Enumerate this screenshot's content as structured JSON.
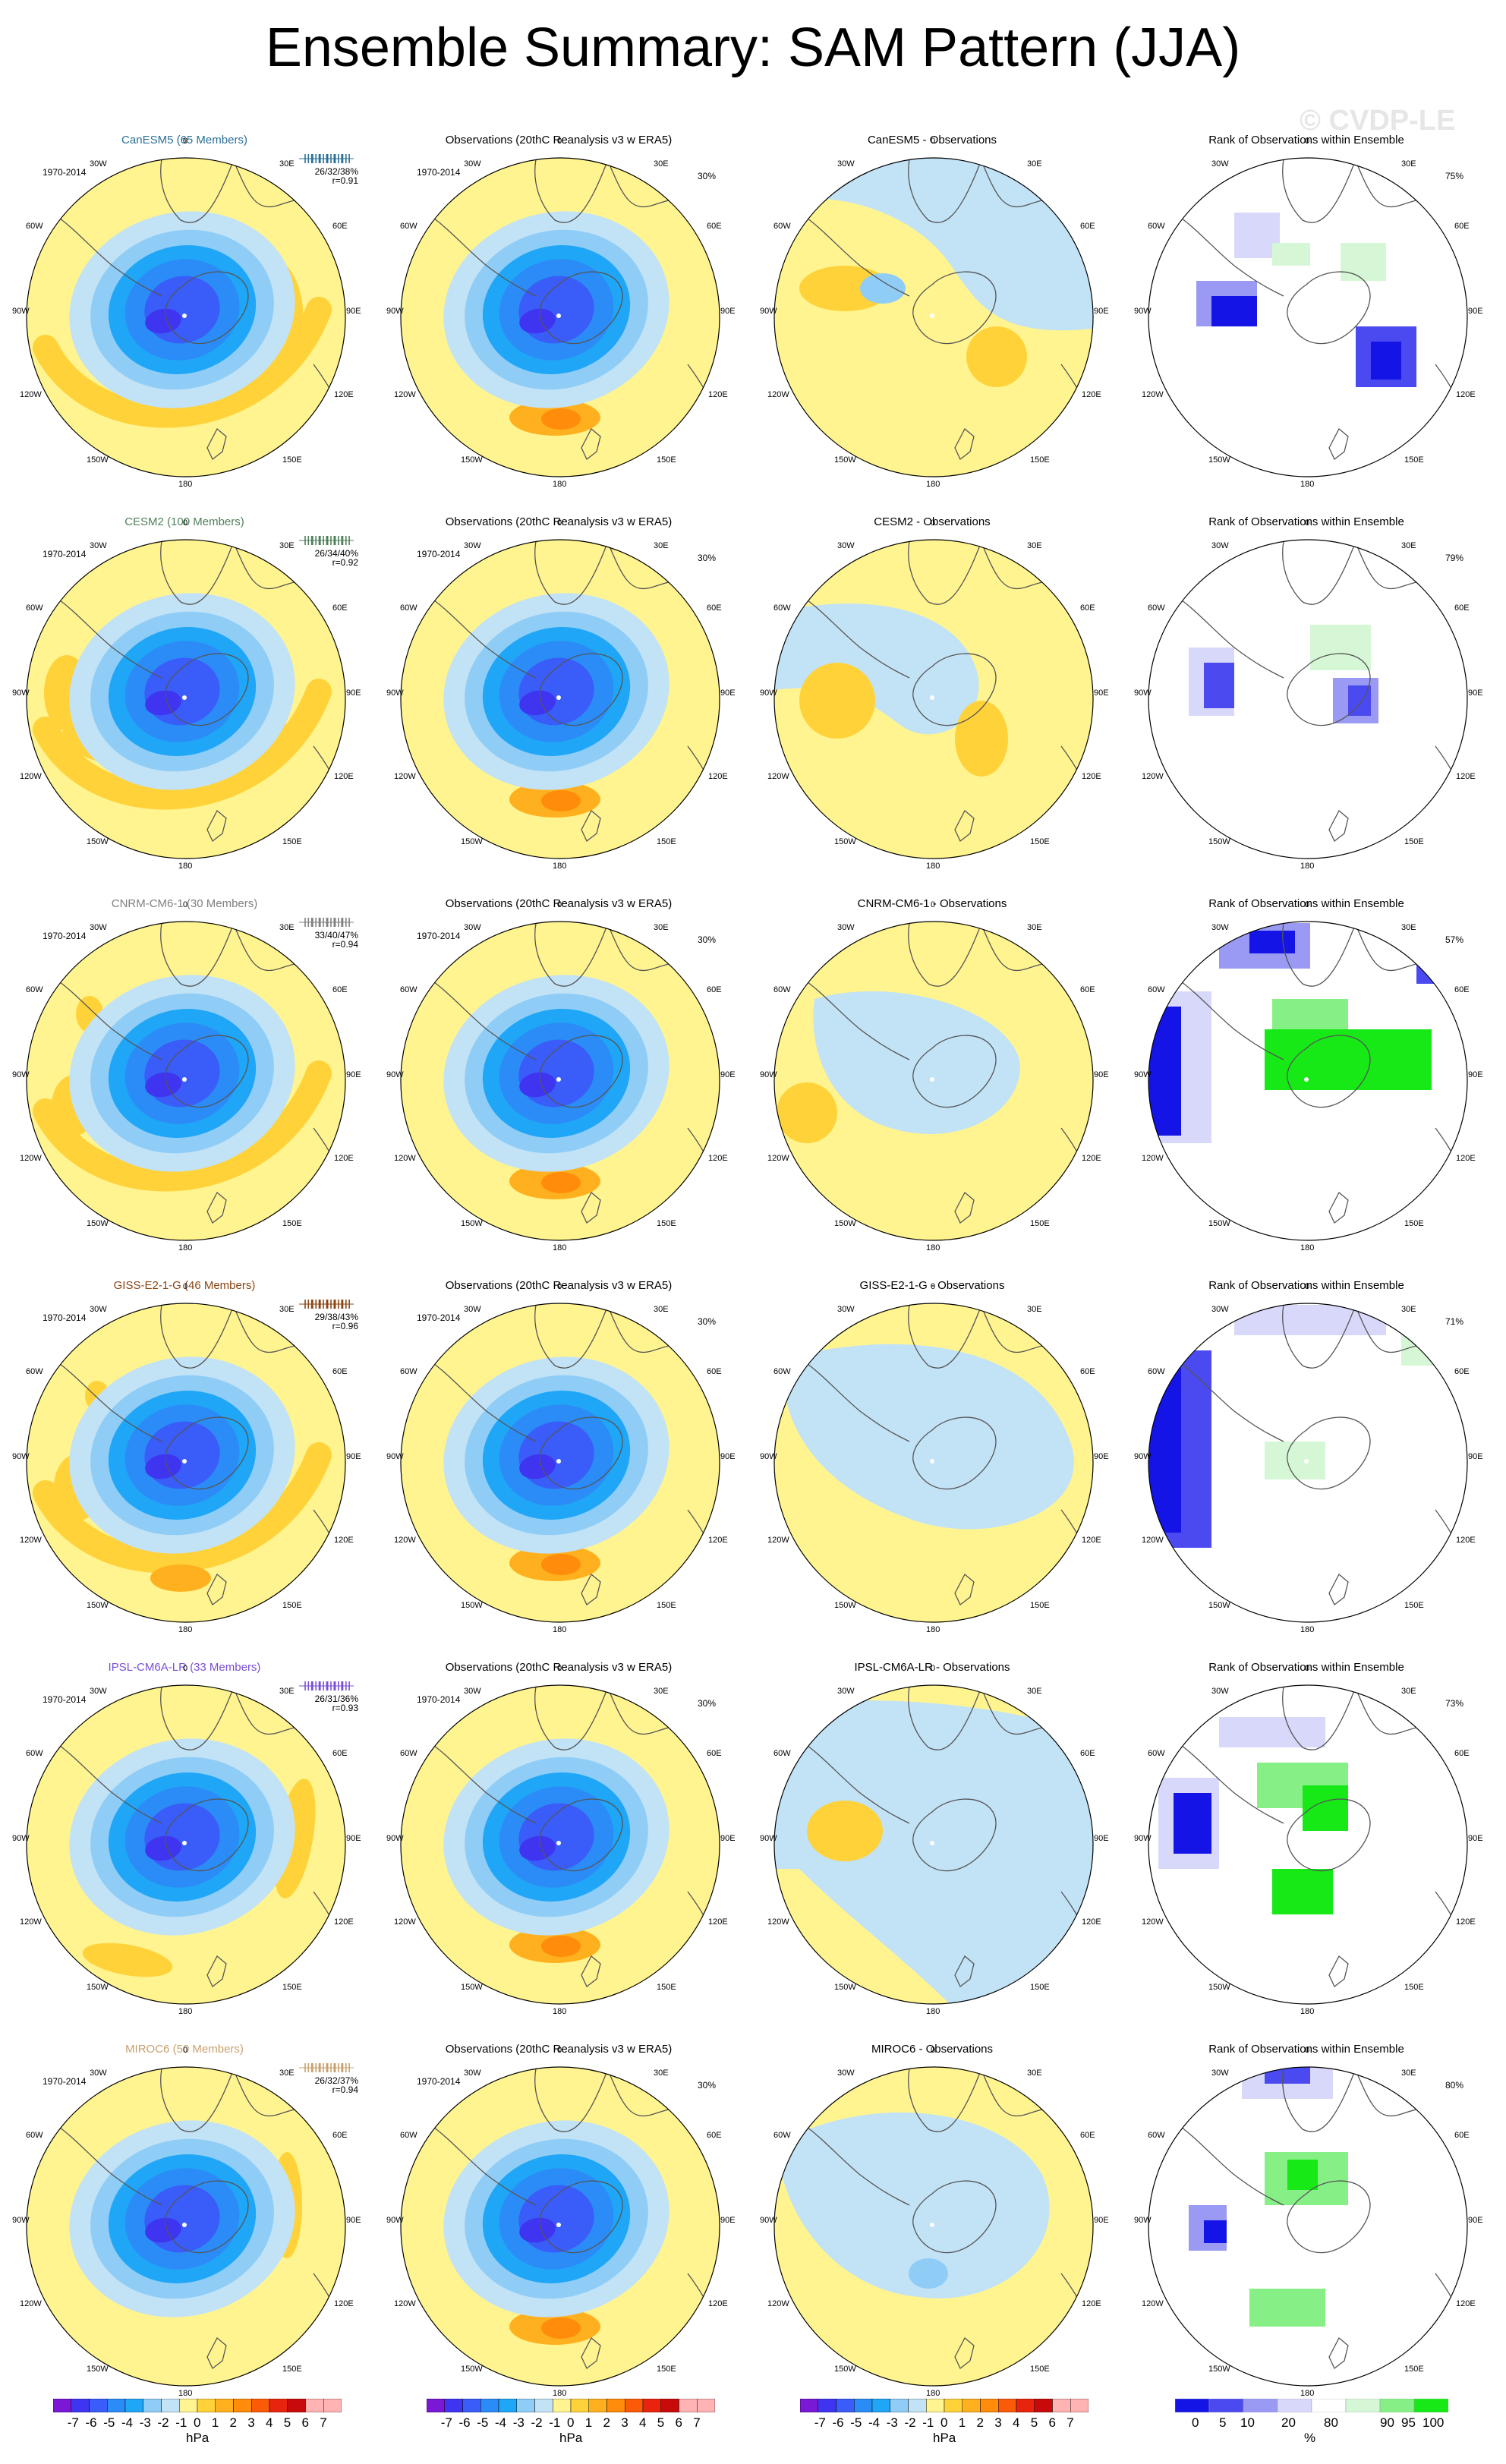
{
  "title": "Ensemble Summary: SAM Pattern (JJA)",
  "watermark": "© CVDP-LE",
  "period": "1970-2014",
  "obs_title": "Observations (20thC Reanalysis v3 w ERA5)",
  "rank_title": "Rank of Observations within Ensemble",
  "map_labels": {
    "top": "0",
    "n30w": "30W",
    "n30e": "30E",
    "w60": "60W",
    "e60": "60E",
    "w90": "90W",
    "e90": "90E",
    "w120": "120W",
    "e120": "120E",
    "s150w": "150W",
    "s150e": "150E",
    "bottom": "180"
  },
  "colors": {
    "neg7": "#7a18d6",
    "neg6": "#3f34f0",
    "neg5": "#3a5cf8",
    "neg4": "#2b8cf7",
    "neg3": "#20a6f6",
    "neg2": "#8fcdf7",
    "neg1": "#c2e2f6",
    "pos0": "#fff48f",
    "pos1": "#ffd23a",
    "pos2": "#ffb01e",
    "pos3": "#ff8c0a",
    "pos4": "#fb5a06",
    "pos5": "#e8240e",
    "pos6": "#c90a0a",
    "pos7": "#ffb3b3",
    "rank_low": "#1414e6",
    "rank_mid1": "#4a4af0",
    "rank_mid2": "#9a9af4",
    "rank_light": "#d8d8fa",
    "rank_green1": "#d6f7d6",
    "rank_green2": "#86ef86",
    "rank_green3": "#16e916",
    "coast": "#555555"
  },
  "rows": [
    {
      "model": "CanESM5 (65 Members)",
      "color": "#2a6f97",
      "stat1": "26/32/38%",
      "stat2": "r=0.91",
      "diff_title": "CanESM5 - Observations",
      "rank_pct": "75%"
    },
    {
      "model": "CESM2 (100 Members)",
      "color": "#4f7f5a",
      "stat1": "26/34/40%",
      "stat2": "r=0.92",
      "diff_title": "CESM2 - Observations",
      "rank_pct": "79%"
    },
    {
      "model": "CNRM-CM6-1 (30 Members)",
      "color": "#808080",
      "stat1": "33/40/47%",
      "stat2": "r=0.94",
      "diff_title": "CNRM-CM6-1 - Observations",
      "rank_pct": "57%"
    },
    {
      "model": "GISS-E2-1-G (46 Members)",
      "color": "#8b4513",
      "stat1": "29/38/43%",
      "stat2": "r=0.96",
      "diff_title": "GISS-E2-1-G - Observations",
      "rank_pct": "71%"
    },
    {
      "model": "IPSL-CM6A-LR (33 Members)",
      "color": "#7a4fd6",
      "stat1": "26/31/36%",
      "stat2": "r=0.93",
      "diff_title": "IPSL-CM6A-LR - Observations",
      "rank_pct": "73%"
    },
    {
      "model": "MIROC6 (50 Members)",
      "color": "#c8a06e",
      "stat1": "26/32/37%",
      "stat2": "r=0.94",
      "diff_title": "MIROC6 - Observations",
      "rank_pct": "80%"
    }
  ],
  "colorbar": {
    "labels": [
      "-7",
      "-6",
      "-5",
      "-4",
      "-3",
      "-2",
      "-1",
      "0",
      "1",
      "2",
      "3",
      "4",
      "5",
      "6",
      "7"
    ],
    "unit": "hPa"
  },
  "rank_colorbar": {
    "labels": [
      "0",
      "5",
      "10",
      "20",
      "80",
      "90",
      "95",
      "100"
    ],
    "unit": "%"
  },
  "chart_data": {
    "type": "heatmap",
    "title": "Ensemble Summary: SAM Pattern (JJA)",
    "projection": "south-polar stereographic",
    "period": "1970-2014",
    "season": "JJA",
    "units_pattern": "hPa",
    "units_rank": "%",
    "contour_levels": [
      -7,
      -6,
      -5,
      -4,
      -3,
      -2,
      -1,
      0,
      1,
      2,
      3,
      4,
      5,
      6,
      7
    ],
    "rank_levels": [
      0,
      5,
      10,
      20,
      80,
      90,
      95,
      100
    ],
    "panels_per_row": [
      "ensemble mean pattern",
      "observations",
      "model minus observations",
      "rank of observations within ensemble"
    ],
    "series": [
      {
        "name": "CanESM5",
        "members": 65,
        "pattern_corr": 0.91,
        "variance_explained": [
          26,
          32,
          38
        ],
        "rank_area_pct": 75
      },
      {
        "name": "CESM2",
        "members": 100,
        "pattern_corr": 0.92,
        "variance_explained": [
          26,
          34,
          40
        ],
        "rank_area_pct": 79
      },
      {
        "name": "CNRM-CM6-1",
        "members": 30,
        "pattern_corr": 0.94,
        "variance_explained": [
          33,
          40,
          47
        ],
        "rank_area_pct": 57
      },
      {
        "name": "GISS-E2-1-G",
        "members": 46,
        "pattern_corr": 0.96,
        "variance_explained": [
          29,
          38,
          43
        ],
        "rank_area_pct": 71
      },
      {
        "name": "IPSL-CM6A-LR",
        "members": 33,
        "pattern_corr": 0.93,
        "variance_explained": [
          26,
          31,
          36
        ],
        "rank_area_pct": 73
      },
      {
        "name": "MIROC6",
        "members": 50,
        "pattern_corr": 0.94,
        "variance_explained": [
          26,
          32,
          37
        ],
        "rank_area_pct": 80
      }
    ]
  }
}
